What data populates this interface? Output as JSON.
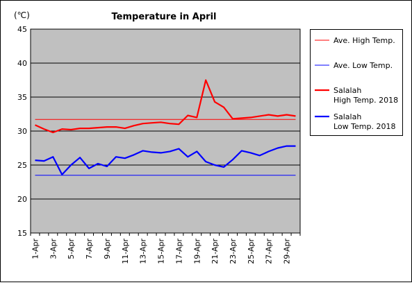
{
  "chart_data": {
    "type": "line",
    "title": "Temperature in April",
    "unit_label": "(℃)",
    "ylim": [
      15,
      45
    ],
    "yticks": [
      "45",
      "40",
      "35",
      "30",
      "25",
      "20",
      "15"
    ],
    "grid": true,
    "legend_position": "right",
    "categories": [
      "1-Apr",
      "2-Apr",
      "3-Apr",
      "4-Apr",
      "5-Apr",
      "6-Apr",
      "7-Apr",
      "8-Apr",
      "9-Apr",
      "10-Apr",
      "11-Apr",
      "12-Apr",
      "13-Apr",
      "14-Apr",
      "15-Apr",
      "16-Apr",
      "17-Apr",
      "18-Apr",
      "19-Apr",
      "20-Apr",
      "21-Apr",
      "22-Apr",
      "23-Apr",
      "24-Apr",
      "25-Apr",
      "26-Apr",
      "27-Apr",
      "28-Apr",
      "29-Apr",
      "30-Apr"
    ],
    "xtick_labels": [
      "1-Apr",
      "3-Apr",
      "5-Apr",
      "7-Apr",
      "9-Apr",
      "11-Apr",
      "13-Apr",
      "15-Apr",
      "17-Apr",
      "19-Apr",
      "21-Apr",
      "23-Apr",
      "25-Apr",
      "27-Apr",
      "29-Apr"
    ],
    "series": [
      {
        "name": "Ave. High Temp.",
        "color": "#ff0000",
        "thick": false,
        "values": [
          31.7,
          31.7,
          31.7,
          31.7,
          31.7,
          31.7,
          31.7,
          31.7,
          31.7,
          31.7,
          31.7,
          31.7,
          31.7,
          31.7,
          31.7,
          31.7,
          31.7,
          31.7,
          31.7,
          31.7,
          31.7,
          31.7,
          31.7,
          31.7,
          31.7,
          31.7,
          31.7,
          31.7,
          31.7,
          31.7
        ]
      },
      {
        "name": "Ave. Low Temp.",
        "color": "#0000ff",
        "thick": false,
        "values": [
          23.5,
          23.5,
          23.5,
          23.5,
          23.5,
          23.5,
          23.5,
          23.5,
          23.5,
          23.5,
          23.5,
          23.5,
          23.5,
          23.5,
          23.5,
          23.5,
          23.5,
          23.5,
          23.5,
          23.5,
          23.5,
          23.5,
          23.5,
          23.5,
          23.5,
          23.5,
          23.5,
          23.5,
          23.5,
          23.5
        ]
      },
      {
        "name": "Salalah High Temp. 2018",
        "legend_lines": [
          "Salalah",
          "High Temp. 2018"
        ],
        "color": "#ff0000",
        "thick": true,
        "values": [
          30.9,
          30.3,
          29.8,
          30.3,
          30.2,
          30.4,
          30.4,
          30.5,
          30.6,
          30.6,
          30.4,
          30.8,
          31.1,
          31.2,
          31.3,
          31.1,
          31.0,
          32.3,
          32.0,
          37.5,
          34.3,
          33.5,
          31.8,
          31.9,
          32.0,
          32.2,
          32.4,
          32.2,
          32.4,
          32.2
        ]
      },
      {
        "name": "Salalah Low Temp. 2018",
        "legend_lines": [
          "Salalah",
          "Low Temp. 2018"
        ],
        "color": "#0000ff",
        "thick": true,
        "values": [
          25.7,
          25.6,
          26.2,
          23.6,
          25.0,
          26.1,
          24.5,
          25.2,
          24.8,
          26.2,
          26.0,
          26.5,
          27.1,
          26.9,
          26.8,
          27.0,
          27.4,
          26.2,
          27.0,
          25.5,
          25.0,
          24.7,
          25.8,
          27.1,
          26.8,
          26.4,
          27.0,
          27.5,
          27.8,
          27.8
        ]
      }
    ]
  }
}
